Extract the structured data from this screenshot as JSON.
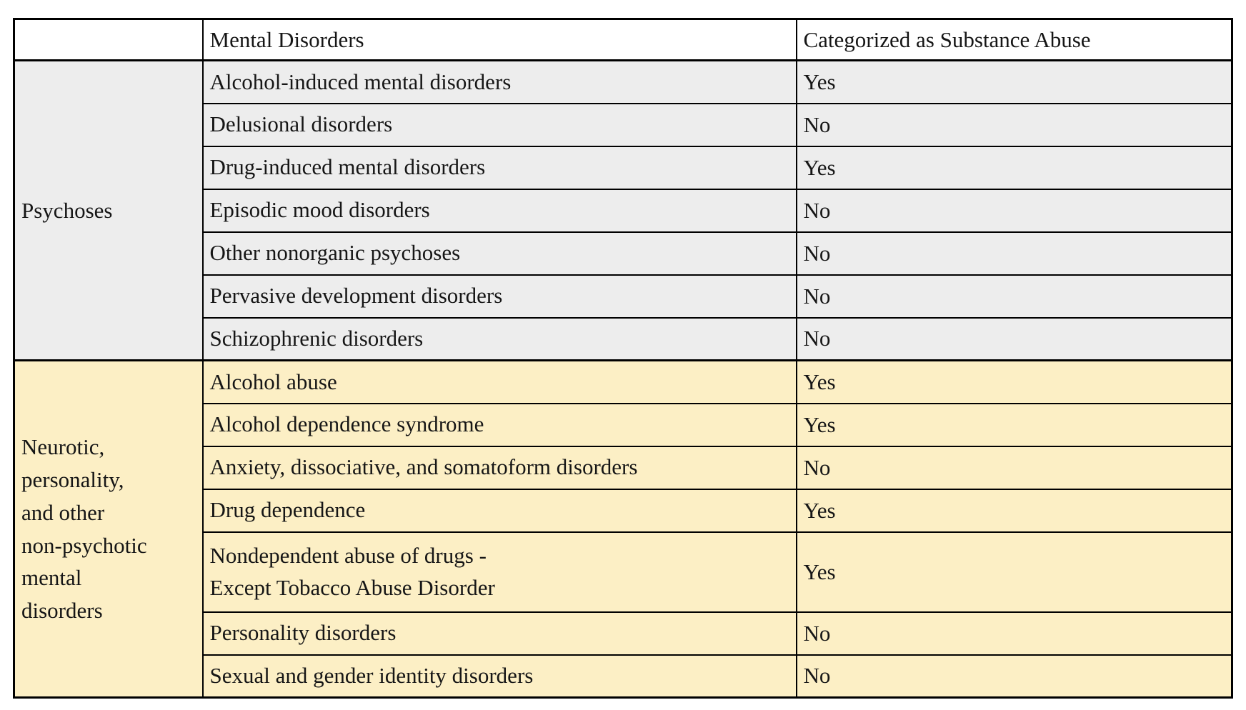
{
  "colors": {
    "border": "#000000",
    "text": "#161616",
    "header_bg": "#FFFFFF",
    "psychoses_group_bg": "#EDEDED",
    "neurotic_group_bg": "#FCEFC5"
  },
  "table": {
    "headers": [
      "",
      "Mental Disorders",
      "Categorized as Substance Abuse"
    ],
    "groups": [
      {
        "label": "Psychoses",
        "rows": [
          {
            "disorder": "Alcohol-induced mental disorders",
            "substance_abuse": "Yes"
          },
          {
            "disorder": "Delusional disorders",
            "substance_abuse": "No"
          },
          {
            "disorder": "Drug-induced mental disorders",
            "substance_abuse": "Yes"
          },
          {
            "disorder": "Episodic mood disorders",
            "substance_abuse": "No"
          },
          {
            "disorder": "Other nonorganic psychoses",
            "substance_abuse": "No"
          },
          {
            "disorder": "Pervasive development disorders",
            "substance_abuse": "No"
          },
          {
            "disorder": "Schizophrenic disorders",
            "substance_abuse": "No"
          }
        ]
      },
      {
        "label": "Neurotic,\npersonality,\nand other\nnon-psychotic\nmental\ndisorders",
        "rows": [
          {
            "disorder": "Alcohol abuse",
            "substance_abuse": "Yes"
          },
          {
            "disorder": "Alcohol dependence syndrome",
            "substance_abuse": "Yes"
          },
          {
            "disorder": "Anxiety, dissociative, and somatoform disorders",
            "substance_abuse": "No"
          },
          {
            "disorder": "Drug dependence",
            "substance_abuse": "Yes"
          },
          {
            "disorder": "Nondependent abuse of drugs -\nExcept Tobacco Abuse Disorder",
            "substance_abuse": "Yes"
          },
          {
            "disorder": "Personality disorders",
            "substance_abuse": "No"
          },
          {
            "disorder": "Sexual and gender identity disorders",
            "substance_abuse": "No"
          }
        ]
      }
    ]
  }
}
